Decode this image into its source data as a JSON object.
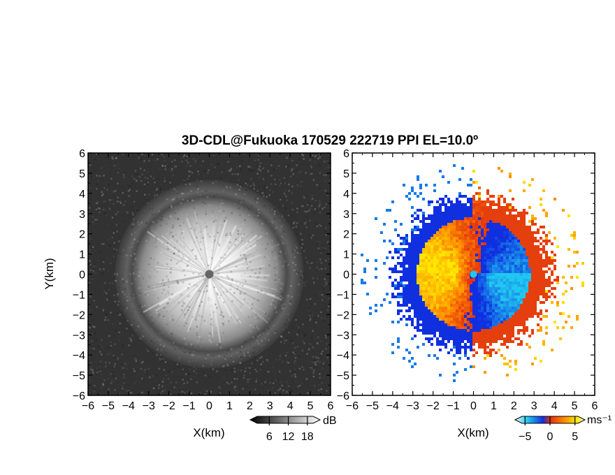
{
  "title": "3D-CDL@Fukuoka 170529 222719 PPI EL=10.0º",
  "chart_data": [
    {
      "type": "heatmap",
      "panel": "left",
      "quantity": "received power",
      "xlabel": "X(km)",
      "ylabel": "Y(km)",
      "xlim": [
        -6,
        6
      ],
      "ylim": [
        -6,
        6
      ],
      "xticks": [
        "−6",
        "−5",
        "−4",
        "−3",
        "−2",
        "−1",
        "0",
        "1",
        "2",
        "3",
        "4",
        "5",
        "6"
      ],
      "yticks": [
        "−6",
        "−5",
        "−4",
        "−3",
        "−2",
        "−1",
        "0",
        "1",
        "2",
        "3",
        "4",
        "5",
        "6"
      ],
      "colormap": "grayscale",
      "colorbar": {
        "label": "dB",
        "ticks": [
          "6",
          "12",
          "18"
        ],
        "tick_values": [
          6,
          12,
          18
        ],
        "range": [
          0,
          22
        ]
      },
      "pattern": {
        "bright_disk_radius_km": 3.3,
        "dark_ring_radius_km": 3.8,
        "center_blank": true
      }
    },
    {
      "type": "heatmap",
      "panel": "right",
      "quantity": "Doppler velocity",
      "xlabel": "X(km)",
      "ylabel": "",
      "xlim": [
        -6,
        6
      ],
      "ylim": [
        -6,
        6
      ],
      "xticks": [
        "−6",
        "−5",
        "−4",
        "−3",
        "−2",
        "−1",
        "0",
        "1",
        "2",
        "3",
        "4",
        "5",
        "6"
      ],
      "yticks": [
        "−6",
        "−5",
        "−4",
        "−3",
        "−2",
        "−1",
        "0",
        "1",
        "2",
        "3",
        "4",
        "5",
        "6"
      ],
      "colormap": "diverging blue-red-yellow",
      "colorbar": {
        "label": "ms⁻¹",
        "ticks": [
          "−5",
          "0",
          "5"
        ],
        "tick_values": [
          -5,
          0,
          5
        ],
        "range": [
          -7,
          7
        ]
      },
      "pattern": {
        "negative_side": "west",
        "positive_side": "east",
        "vortex_center_km": [
          0,
          0
        ],
        "max_radius_km": 4.3
      }
    }
  ],
  "colors": {
    "neg_dark": "#1030e0",
    "neg_light": "#20c8f0",
    "zero": "#e03010",
    "pos_mid": "#ff8800",
    "pos_light": "#ffe800"
  }
}
